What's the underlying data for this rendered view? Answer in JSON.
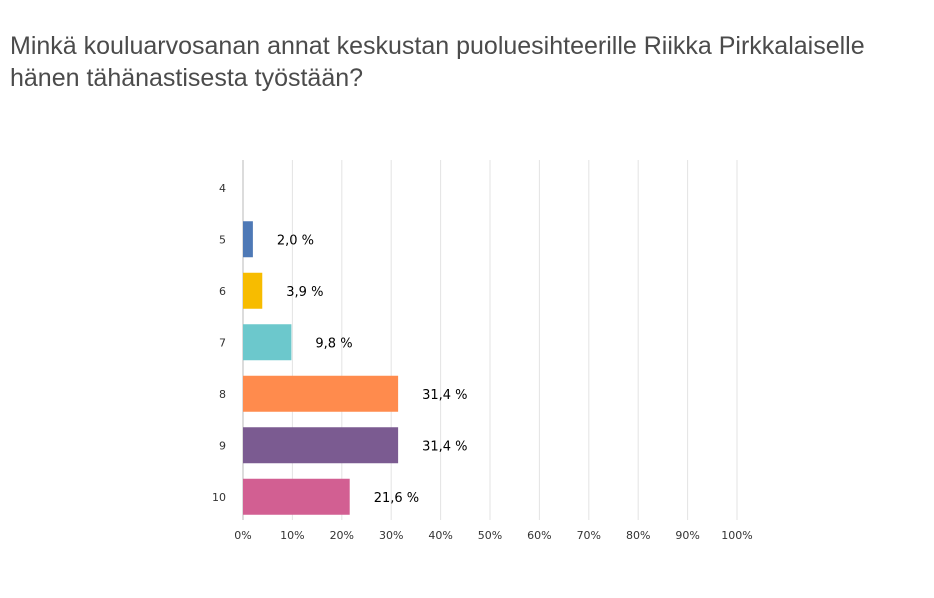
{
  "title": "Minkä kouluarvosanan annat keskustan puoluesihteerille Riikka Pirkkalaiselle hänen tähänastisesta työstään?",
  "chart_data": {
    "type": "bar",
    "orientation": "horizontal",
    "categories": [
      "4",
      "5",
      "6",
      "7",
      "8",
      "9",
      "10"
    ],
    "values": [
      0,
      2.0,
      3.9,
      9.8,
      31.4,
      31.4,
      21.6
    ],
    "value_labels": [
      "",
      "2,0 %",
      "3,9 %",
      "9,8 %",
      "31,4 %",
      "31,4 %",
      "21,6 %"
    ],
    "colors": [
      "#ffffff",
      "#4e79b6",
      "#f7bc00",
      "#6cc8cc",
      "#ff8b4d",
      "#7b5b91",
      "#d25f92"
    ],
    "xlim": [
      0,
      100
    ],
    "x_ticks": [
      0,
      10,
      20,
      30,
      40,
      50,
      60,
      70,
      80,
      90,
      100
    ],
    "x_tick_labels": [
      "0%",
      "10%",
      "20%",
      "30%",
      "40%",
      "50%",
      "60%",
      "70%",
      "80%",
      "90%",
      "100%"
    ],
    "grid": true,
    "xlabel": "",
    "ylabel": ""
  }
}
